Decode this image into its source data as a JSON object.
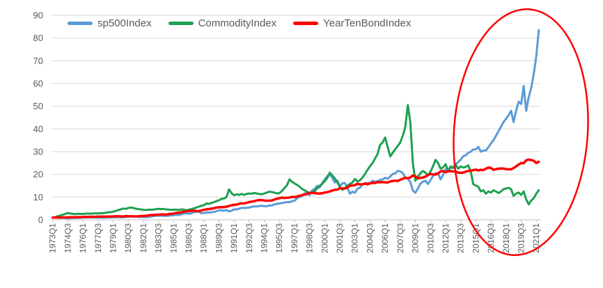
{
  "chart_data": {
    "type": "line",
    "title": "",
    "xlabel": "",
    "ylabel": "",
    "x_unit": "quarter",
    "x_start": "1973Q1",
    "x_end": "2021Q2",
    "ylim": [
      0,
      90
    ],
    "y_ticks": [
      0,
      10,
      20,
      30,
      40,
      50,
      60,
      70,
      80,
      90
    ],
    "grid": true,
    "legend_position": "top",
    "x_tick_labels": [
      "1973Q1",
      "1974Q3",
      "1976Q1",
      "1977Q3",
      "1979Q1",
      "1980Q3",
      "1982Q1",
      "1983Q3",
      "1985Q1",
      "1986Q3",
      "1988Q1",
      "1989Q3",
      "1991Q1",
      "1992Q3",
      "1994Q1",
      "1995Q3",
      "1997Q1",
      "1998Q3",
      "2000Q1",
      "2001Q3",
      "2003Q1",
      "2004Q3",
      "2006Q1",
      "2007Q3",
      "2009Q1",
      "2010Q3",
      "2012Q1",
      "2013Q3",
      "2015Q1",
      "2016Q3",
      "2018Q1",
      "2019Q3",
      "2021Q1"
    ],
    "series": [
      {
        "name": "sp500Index",
        "color": "#5B9BD5",
        "values": [
          1.0,
          0.95,
          0.9,
          0.85,
          0.85,
          0.8,
          0.7,
          0.75,
          0.85,
          0.9,
          0.85,
          0.9,
          1.0,
          1.05,
          1.05,
          1.1,
          1.05,
          1.05,
          1.0,
          1.0,
          0.95,
          1.0,
          1.1,
          1.05,
          1.1,
          1.1,
          1.15,
          1.15,
          1.1,
          1.25,
          1.35,
          1.45,
          1.45,
          1.4,
          1.25,
          1.3,
          1.2,
          1.2,
          1.3,
          1.5,
          1.65,
          1.8,
          1.8,
          1.8,
          1.75,
          1.7,
          1.85,
          1.9,
          2.05,
          2.2,
          2.1,
          2.4,
          2.7,
          2.9,
          2.7,
          2.8,
          3.4,
          3.5,
          3.7,
          2.9,
          3.0,
          3.2,
          3.2,
          3.3,
          3.5,
          3.8,
          4.2,
          4.2,
          4.0,
          4.3,
          3.7,
          4.0,
          4.6,
          4.6,
          4.9,
          5.3,
          5.2,
          5.3,
          5.4,
          5.7,
          5.9,
          5.9,
          6.0,
          6.2,
          6.0,
          6.0,
          6.3,
          6.3,
          6.8,
          7.0,
          7.2,
          7.4,
          7.6,
          7.8,
          7.7,
          8.2,
          8.4,
          9.4,
          10.1,
          10.4,
          11.6,
          12.1,
          10.8,
          13.0,
          13.6,
          15.0,
          14.2,
          16.2,
          17.8,
          19.2,
          20.0,
          18.5,
          16.4,
          17.3,
          14.6,
          16.1,
          16.2,
          14.0,
          11.5,
          12.4,
          11.9,
          13.7,
          14.1,
          15.7,
          16.0,
          16.2,
          15.9,
          17.2,
          16.8,
          17.0,
          17.6,
          17.8,
          18.5,
          18.1,
          19.0,
          20.2,
          20.4,
          21.6,
          21.3,
          20.6,
          18.6,
          18.1,
          16.6,
          12.9,
          11.9,
          13.8,
          15.9,
          16.8,
          17.2,
          15.8,
          17.5,
          19.3,
          20.5,
          20.5,
          17.8,
          19.8,
          22.3,
          21.6,
          22.9,
          22.8,
          24.5,
          25.4,
          26.5,
          28.0,
          28.4,
          29.5,
          30.0,
          31.0,
          31.0,
          32.1,
          30.0,
          30.5,
          30.5,
          32.0,
          33.6,
          35.0,
          37.0,
          39.0,
          41.0,
          43.0,
          44.5,
          46.0,
          48.0,
          43.0,
          48.0,
          52.0,
          51.0,
          59.0,
          48.0,
          54.0,
          58.0,
          64.0,
          72.0,
          83.5
        ]
      },
      {
        "name": "CommodityIndex",
        "color": "#1EA050",
        "values": [
          1.0,
          1.2,
          1.6,
          1.9,
          2.2,
          2.6,
          3.0,
          2.8,
          2.6,
          2.5,
          2.7,
          2.6,
          2.6,
          2.7,
          2.8,
          2.7,
          2.8,
          2.9,
          2.8,
          2.9,
          2.9,
          3.1,
          3.3,
          3.4,
          3.6,
          3.9,
          4.3,
          4.6,
          5.0,
          4.8,
          5.2,
          5.4,
          5.2,
          4.9,
          4.7,
          4.6,
          4.4,
          4.3,
          4.5,
          4.4,
          4.5,
          4.7,
          4.8,
          4.7,
          4.8,
          4.6,
          4.5,
          4.4,
          4.4,
          4.5,
          4.3,
          4.6,
          4.5,
          4.2,
          4.4,
          4.7,
          5.0,
          5.4,
          5.8,
          6.2,
          6.4,
          7.2,
          7.0,
          7.4,
          7.8,
          8.2,
          8.6,
          9.2,
          9.4,
          10.0,
          13.4,
          11.8,
          10.8,
          11.2,
          11.0,
          11.4,
          11.0,
          11.4,
          11.6,
          11.5,
          11.8,
          11.6,
          11.4,
          11.2,
          11.6,
          12.0,
          12.4,
          12.2,
          12.0,
          11.6,
          11.8,
          12.6,
          14.0,
          15.2,
          17.8,
          16.8,
          16.0,
          15.4,
          14.6,
          13.6,
          13.0,
          12.4,
          11.8,
          12.2,
          12.6,
          13.8,
          15.0,
          15.8,
          17.0,
          18.4,
          20.8,
          19.6,
          18.2,
          16.6,
          14.4,
          13.2,
          14.0,
          15.0,
          15.8,
          16.4,
          18.0,
          16.8,
          17.4,
          18.6,
          20.2,
          22.0,
          23.6,
          25.0,
          27.0,
          29.0,
          33.0,
          34.0,
          36.2,
          32.0,
          27.9,
          29.5,
          31.0,
          32.5,
          34.0,
          37.0,
          41.0,
          50.5,
          43.0,
          25.0,
          17.2,
          19.0,
          20.5,
          21.5,
          20.8,
          19.5,
          21.3,
          23.5,
          26.4,
          25.0,
          22.5,
          23.0,
          24.5,
          21.5,
          23.5,
          23.0,
          24.3,
          22.5,
          23.5,
          23.0,
          23.3,
          24.0,
          21.2,
          15.7,
          15.1,
          14.5,
          12.5,
          13.0,
          11.5,
          12.5,
          12.0,
          13.0,
          12.5,
          11.8,
          12.5,
          13.5,
          13.8,
          14.1,
          13.5,
          10.5,
          11.5,
          12.0,
          11.0,
          12.5,
          9.0,
          6.8,
          8.5,
          9.5,
          11.5,
          13.0
        ]
      },
      {
        "name": "YearTenBondIndex",
        "color": "#FF0000",
        "values": [
          1.0,
          1.0,
          1.05,
          1.05,
          1.05,
          1.05,
          1.1,
          1.15,
          1.15,
          1.15,
          1.2,
          1.2,
          1.25,
          1.25,
          1.3,
          1.35,
          1.35,
          1.35,
          1.4,
          1.4,
          1.4,
          1.4,
          1.45,
          1.45,
          1.5,
          1.55,
          1.55,
          1.5,
          1.45,
          1.65,
          1.6,
          1.55,
          1.55,
          1.5,
          1.55,
          1.65,
          1.7,
          1.75,
          1.95,
          2.1,
          2.15,
          2.2,
          2.3,
          2.35,
          2.35,
          2.3,
          2.5,
          2.65,
          2.75,
          3.05,
          3.1,
          3.3,
          3.6,
          3.7,
          3.85,
          3.95,
          4.0,
          3.85,
          3.8,
          4.1,
          4.4,
          4.6,
          4.75,
          4.9,
          5.1,
          5.4,
          5.5,
          5.6,
          5.6,
          5.8,
          6.1,
          6.4,
          6.6,
          6.7,
          7.0,
          7.3,
          7.2,
          7.5,
          7.8,
          8.0,
          8.2,
          8.5,
          8.7,
          8.7,
          8.5,
          8.4,
          8.45,
          8.5,
          8.9,
          9.3,
          9.5,
          9.8,
          9.6,
          9.7,
          9.8,
          10.1,
          10.0,
          10.3,
          10.6,
          10.9,
          11.1,
          11.3,
          11.9,
          11.9,
          11.8,
          11.6,
          11.6,
          11.7,
          12.0,
          12.2,
          12.5,
          12.9,
          13.2,
          13.3,
          13.9,
          13.8,
          13.8,
          14.2,
          15.0,
          15.1,
          15.3,
          15.8,
          15.6,
          15.6,
          16.0,
          15.6,
          16.1,
          16.3,
          16.2,
          16.6,
          16.5,
          16.6,
          16.5,
          16.4,
          16.9,
          17.1,
          17.2,
          17.1,
          17.6,
          18.1,
          18.5,
          18.3,
          18.6,
          19.5,
          19.2,
          18.2,
          18.5,
          18.6,
          19.0,
          19.7,
          20.2,
          20.0,
          19.9,
          20.4,
          21.3,
          21.5,
          21.0,
          21.3,
          21.4,
          21.3,
          21.3,
          20.8,
          20.7,
          20.8,
          21.2,
          21.5,
          21.6,
          21.9,
          22.1,
          21.7,
          22.0,
          21.9,
          22.5,
          23.0,
          22.8,
          22.0,
          22.3,
          22.5,
          22.6,
          22.6,
          22.3,
          22.3,
          22.2,
          22.8,
          23.5,
          24.3,
          25.0,
          24.9,
          26.2,
          26.5,
          26.3,
          26.0,
          25.0,
          25.6
        ]
      }
    ],
    "annotation": {
      "shape": "ellipse",
      "color": "#FF0000",
      "highlight_x_range": [
        "2014Q3",
        "2021Q2"
      ],
      "note": "red ellipse circling the post-2014 divergence of the three indexes"
    }
  },
  "style": {
    "gridline_color": "#D9D9D9",
    "axis_color": "#BFBFBF",
    "tick_text_color": "#595959",
    "background": "#FFFFFF"
  }
}
